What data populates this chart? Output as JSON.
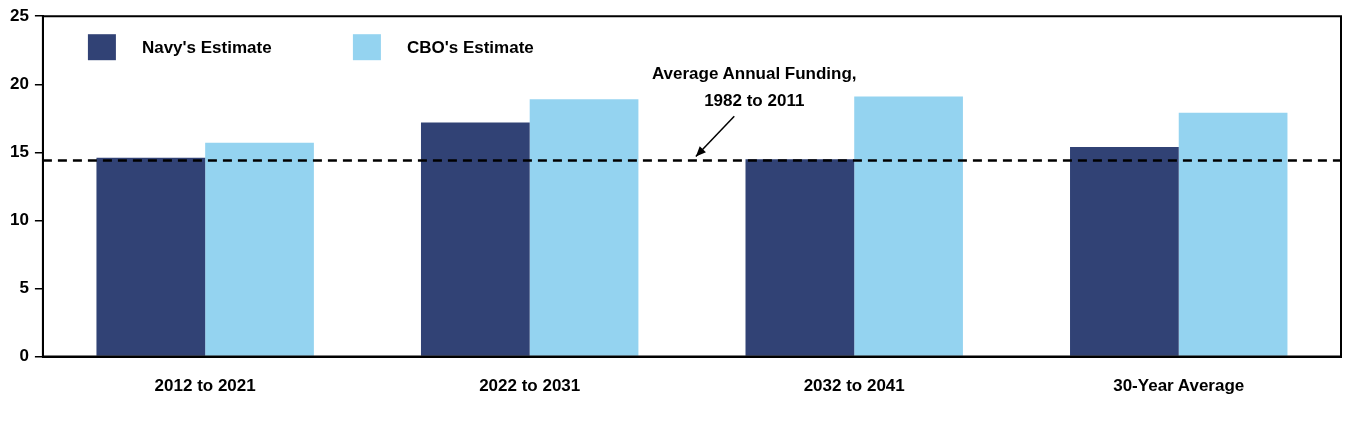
{
  "chart_data": {
    "type": "bar",
    "categories": [
      "2012 to 2021",
      "2022 to 2031",
      "2032 to 2041",
      "30-Year Average"
    ],
    "series": [
      {
        "name": "Navy's Estimate",
        "color": "#314275",
        "values": [
          14.6,
          17.2,
          14.5,
          15.4
        ]
      },
      {
        "name": "CBO's Estimate",
        "color": "#94d3f0",
        "values": [
          15.7,
          18.9,
          19.1,
          17.9
        ]
      }
    ],
    "ylim": [
      0,
      25
    ],
    "yticks": [
      0,
      5,
      10,
      15,
      20,
      25
    ],
    "grid": false,
    "legend": "top left",
    "ref_lines": [
      {
        "axis": "y",
        "value": 14.4,
        "label": "Average Annual Funding,\n1982 to 2011",
        "color": "#000000",
        "line_style": "dashed"
      }
    ]
  }
}
